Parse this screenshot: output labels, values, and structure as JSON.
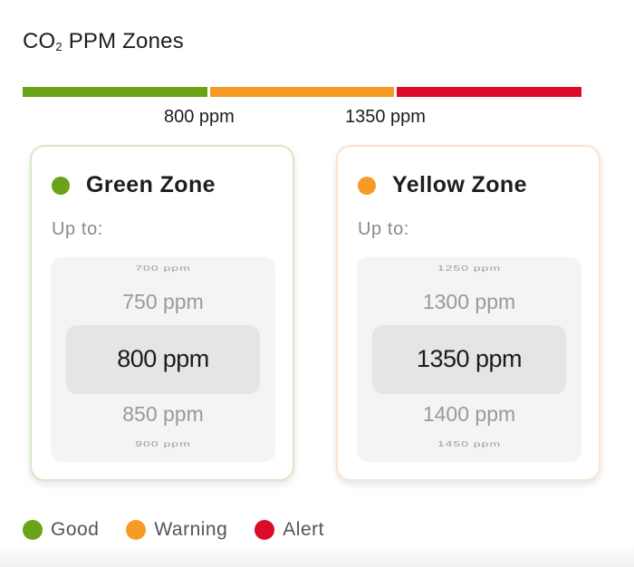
{
  "title": {
    "main": "CO",
    "sub": "2",
    "rest": " PPM Zones"
  },
  "colors": {
    "good": "#6aa317",
    "warning": "#f89b26",
    "alert": "#dd0b2a"
  },
  "thresholds": [
    "800 ppm",
    "1350 ppm"
  ],
  "cards": {
    "green": {
      "title": "Green Zone",
      "upto_label": "Up to:",
      "picker": {
        "far_top": "700 ppm",
        "near_top": "750 ppm",
        "selected": "800 ppm",
        "near_bottom": "850 ppm",
        "far_bottom": "900 ppm"
      }
    },
    "yellow": {
      "title": "Yellow Zone",
      "upto_label": "Up to:",
      "picker": {
        "far_top": "1250 ppm",
        "near_top": "1300 ppm",
        "selected": "1350 ppm",
        "near_bottom": "1400 ppm",
        "far_bottom": "1450 ppm"
      }
    }
  },
  "legend": [
    {
      "label": "Good",
      "color_key": "good"
    },
    {
      "label": "Warning",
      "color_key": "warning"
    },
    {
      "label": "Alert",
      "color_key": "alert"
    }
  ]
}
